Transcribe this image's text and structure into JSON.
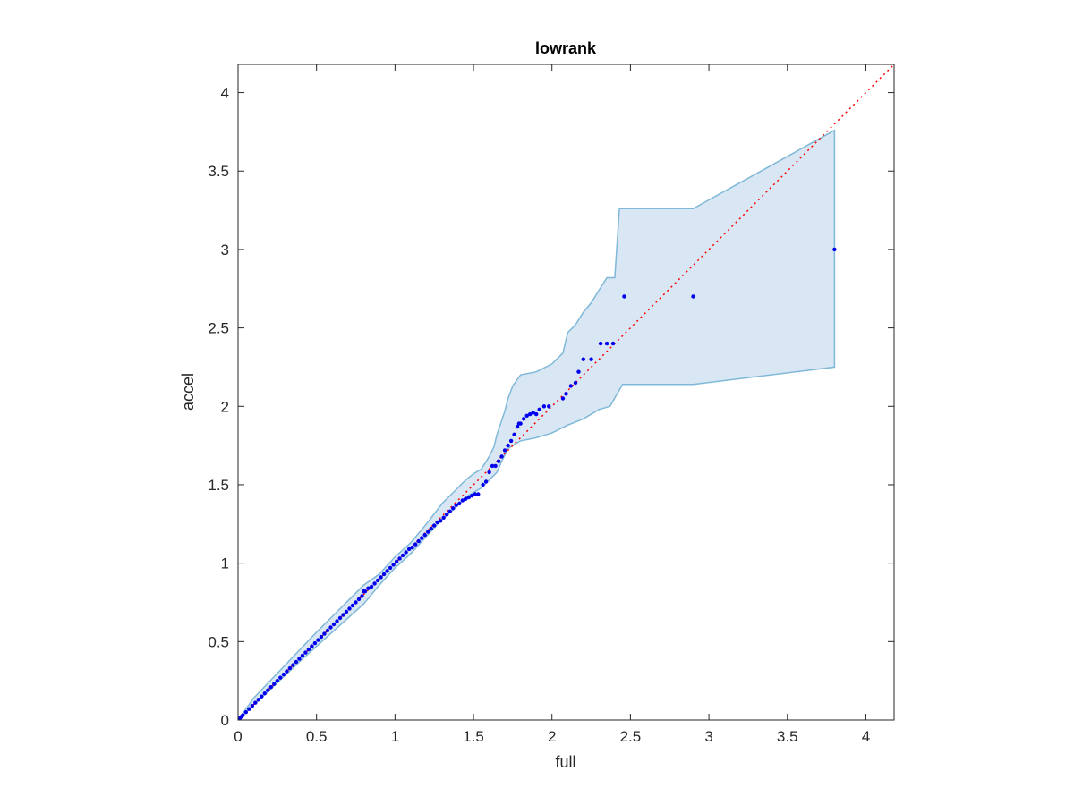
{
  "chart_data": {
    "type": "scatter",
    "title": "lowrank",
    "xlabel": "full",
    "ylabel": "accel",
    "xlim": [
      0,
      4.18
    ],
    "ylim": [
      0,
      4.18
    ],
    "xticks": [
      0,
      0.5,
      1,
      1.5,
      2,
      2.5,
      3,
      3.5,
      4
    ],
    "xtick_labels": [
      "0",
      "0.5",
      "1",
      "1.5",
      "2",
      "2.5",
      "3",
      "3.5",
      "4"
    ],
    "yticks": [
      0,
      0.5,
      1,
      1.5,
      2,
      2.5,
      3,
      3.5,
      4
    ],
    "ytick_labels": [
      "0",
      "0.5",
      "1",
      "1.5",
      "2",
      "2.5",
      "3",
      "3.5",
      "4"
    ],
    "grid": false,
    "box": true,
    "reference_line": {
      "from": [
        0,
        0
      ],
      "to": [
        4.18,
        4.18
      ],
      "color": "#ff0000",
      "style": "dotted"
    },
    "band": {
      "fill": "#d8e7f3",
      "edge": "#7fb8d8",
      "upper": [
        [
          0,
          0
        ],
        [
          0.1,
          0.14
        ],
        [
          0.3,
          0.35
        ],
        [
          0.5,
          0.56
        ],
        [
          0.7,
          0.76
        ],
        [
          0.8,
          0.86
        ],
        [
          0.9,
          0.93
        ],
        [
          1.0,
          1.04
        ],
        [
          1.1,
          1.13
        ],
        [
          1.2,
          1.25
        ],
        [
          1.3,
          1.38
        ],
        [
          1.4,
          1.48
        ],
        [
          1.45,
          1.53
        ],
        [
          1.5,
          1.57
        ],
        [
          1.55,
          1.6
        ],
        [
          1.6,
          1.68
        ],
        [
          1.63,
          1.74
        ],
        [
          1.65,
          1.82
        ],
        [
          1.7,
          1.97
        ],
        [
          1.72,
          2.05
        ],
        [
          1.75,
          2.13
        ],
        [
          1.8,
          2.2
        ],
        [
          1.9,
          2.22
        ],
        [
          2.0,
          2.27
        ],
        [
          2.07,
          2.34
        ],
        [
          2.1,
          2.47
        ],
        [
          2.15,
          2.52
        ],
        [
          2.2,
          2.6
        ],
        [
          2.25,
          2.66
        ],
        [
          2.3,
          2.74
        ],
        [
          2.35,
          2.82
        ],
        [
          2.4,
          2.82
        ],
        [
          2.43,
          3.26
        ],
        [
          2.9,
          3.26
        ],
        [
          3.8,
          3.76
        ]
      ],
      "lower": [
        [
          3.8,
          2.25
        ],
        [
          2.9,
          2.14
        ],
        [
          2.45,
          2.14
        ],
        [
          2.37,
          2.0
        ],
        [
          2.3,
          1.98
        ],
        [
          2.2,
          1.92
        ],
        [
          2.1,
          1.88
        ],
        [
          2.0,
          1.83
        ],
        [
          1.9,
          1.8
        ],
        [
          1.8,
          1.78
        ],
        [
          1.72,
          1.73
        ],
        [
          1.68,
          1.65
        ],
        [
          1.65,
          1.58
        ],
        [
          1.6,
          1.53
        ],
        [
          1.55,
          1.48
        ],
        [
          1.5,
          1.45
        ],
        [
          1.45,
          1.42
        ],
        [
          1.4,
          1.37
        ],
        [
          1.35,
          1.32
        ],
        [
          1.3,
          1.28
        ],
        [
          1.2,
          1.17
        ],
        [
          1.1,
          1.06
        ],
        [
          1.0,
          0.97
        ],
        [
          0.9,
          0.86
        ],
        [
          0.8,
          0.74
        ],
        [
          0.6,
          0.56
        ],
        [
          0.4,
          0.38
        ],
        [
          0.2,
          0.19
        ],
        [
          0,
          0
        ]
      ]
    },
    "series": [
      {
        "color": "#0000ee",
        "x": [
          0.01,
          0.02,
          0.03,
          0.05,
          0.07,
          0.09,
          0.11,
          0.13,
          0.15,
          0.17,
          0.19,
          0.21,
          0.23,
          0.25,
          0.27,
          0.29,
          0.31,
          0.33,
          0.35,
          0.37,
          0.39,
          0.41,
          0.43,
          0.45,
          0.47,
          0.49,
          0.51,
          0.53,
          0.55,
          0.57,
          0.59,
          0.61,
          0.63,
          0.65,
          0.67,
          0.69,
          0.71,
          0.73,
          0.75,
          0.77,
          0.79,
          0.8,
          0.81,
          0.83,
          0.85,
          0.87,
          0.89,
          0.91,
          0.93,
          0.95,
          0.97,
          0.99,
          1.01,
          1.03,
          1.05,
          1.07,
          1.09,
          1.11,
          1.13,
          1.15,
          1.17,
          1.19,
          1.21,
          1.23,
          1.25,
          1.27,
          1.29,
          1.31,
          1.33,
          1.35,
          1.37,
          1.39,
          1.41,
          1.43,
          1.45,
          1.47,
          1.49,
          1.51,
          1.53,
          1.56,
          1.58,
          1.6,
          1.62,
          1.64,
          1.66,
          1.68,
          1.7,
          1.72,
          1.74,
          1.76,
          1.78,
          1.79,
          1.8,
          1.82,
          1.84,
          1.86,
          1.88,
          1.9,
          1.92,
          1.95,
          1.98,
          2.07,
          2.09,
          2.12,
          2.15,
          2.17,
          2.2,
          2.25,
          2.31,
          2.35,
          2.39,
          2.46,
          2.9,
          3.8
        ],
        "y": [
          0.01,
          0.02,
          0.03,
          0.05,
          0.07,
          0.09,
          0.11,
          0.13,
          0.15,
          0.17,
          0.19,
          0.21,
          0.23,
          0.25,
          0.27,
          0.29,
          0.31,
          0.33,
          0.35,
          0.37,
          0.39,
          0.41,
          0.43,
          0.45,
          0.47,
          0.49,
          0.51,
          0.53,
          0.55,
          0.57,
          0.59,
          0.61,
          0.63,
          0.65,
          0.67,
          0.69,
          0.71,
          0.73,
          0.75,
          0.77,
          0.79,
          0.82,
          0.82,
          0.84,
          0.85,
          0.87,
          0.89,
          0.91,
          0.93,
          0.95,
          0.97,
          0.99,
          1.01,
          1.03,
          1.05,
          1.07,
          1.09,
          1.1,
          1.12,
          1.14,
          1.16,
          1.18,
          1.2,
          1.22,
          1.24,
          1.26,
          1.27,
          1.29,
          1.31,
          1.33,
          1.35,
          1.37,
          1.38,
          1.4,
          1.41,
          1.42,
          1.43,
          1.44,
          1.44,
          1.5,
          1.52,
          1.58,
          1.62,
          1.62,
          1.65,
          1.68,
          1.72,
          1.75,
          1.78,
          1.82,
          1.87,
          1.89,
          1.89,
          1.92,
          1.94,
          1.95,
          1.96,
          1.95,
          1.98,
          2.0,
          2.0,
          2.05,
          2.08,
          2.13,
          2.15,
          2.22,
          2.3,
          2.3,
          2.4,
          2.4,
          2.4,
          2.7,
          2.7,
          3.0
        ]
      }
    ]
  }
}
